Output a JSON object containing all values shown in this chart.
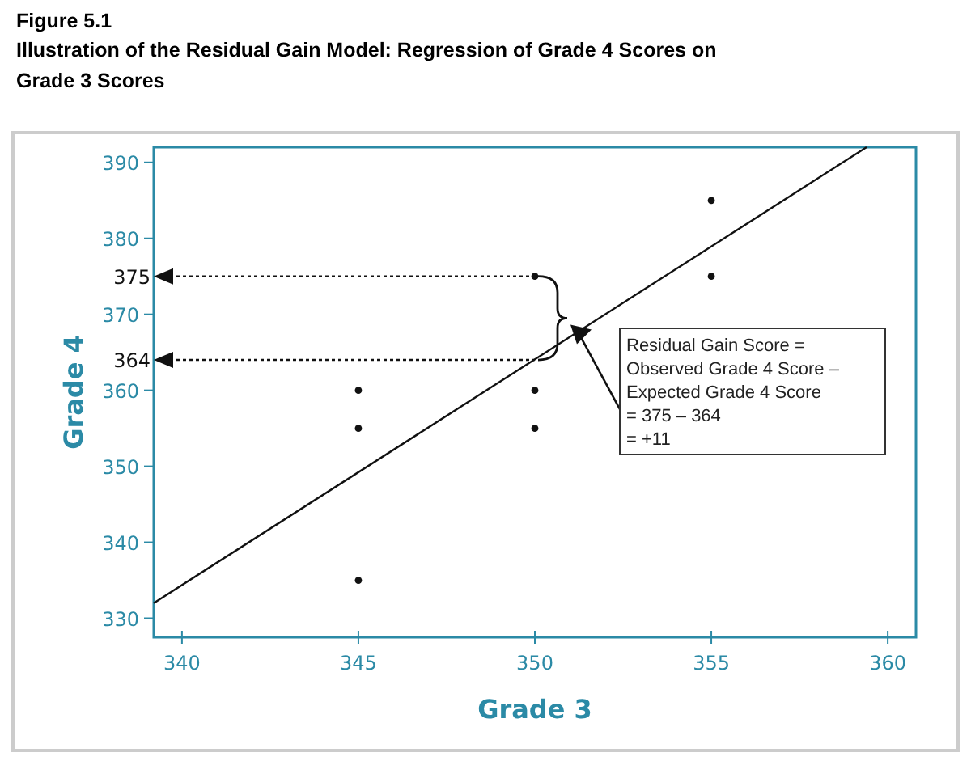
{
  "chart_data": {
    "type": "scatter",
    "title": "Figure 5.1",
    "subtitle": "Illustration of the Residual Gain Model: Regression of Grade 4 Scores on Grade 3 Scores",
    "xlabel": "Grade 3",
    "ylabel": "Grade 4",
    "xlim": [
      339.2,
      360.8
    ],
    "ylim": [
      327.5,
      392
    ],
    "xticks": [
      340,
      345,
      350,
      355,
      360
    ],
    "yticks": [
      330,
      340,
      350,
      360,
      370,
      380,
      390
    ],
    "grid": false,
    "marker": "circle",
    "series": [
      {
        "color": "#111111",
        "x": [
          345,
          345,
          345,
          350,
          350,
          350,
          355,
          355
        ],
        "values": [
          335,
          355,
          360,
          355,
          360,
          375,
          375,
          385
        ]
      },
      {
        "type": "line",
        "color": "#111111",
        "line_style": "solid",
        "marker": "none",
        "x": [
          339.2,
          359.4
        ],
        "values": [
          332,
          392
        ]
      }
    ],
    "ref_lines": [
      {
        "axis": "y",
        "value": 375,
        "label": "375",
        "color": "#111111",
        "line_style": "dotted"
      },
      {
        "axis": "y",
        "value": 364,
        "label": "364",
        "color": "#111111",
        "line_style": "dotted"
      }
    ],
    "annotations": [
      {
        "text": "Residual Gain Score =\nObserved Grade 4 Score –\nExpected Grade 4 Score\n= 375 – 364\n= +11"
      }
    ]
  }
}
